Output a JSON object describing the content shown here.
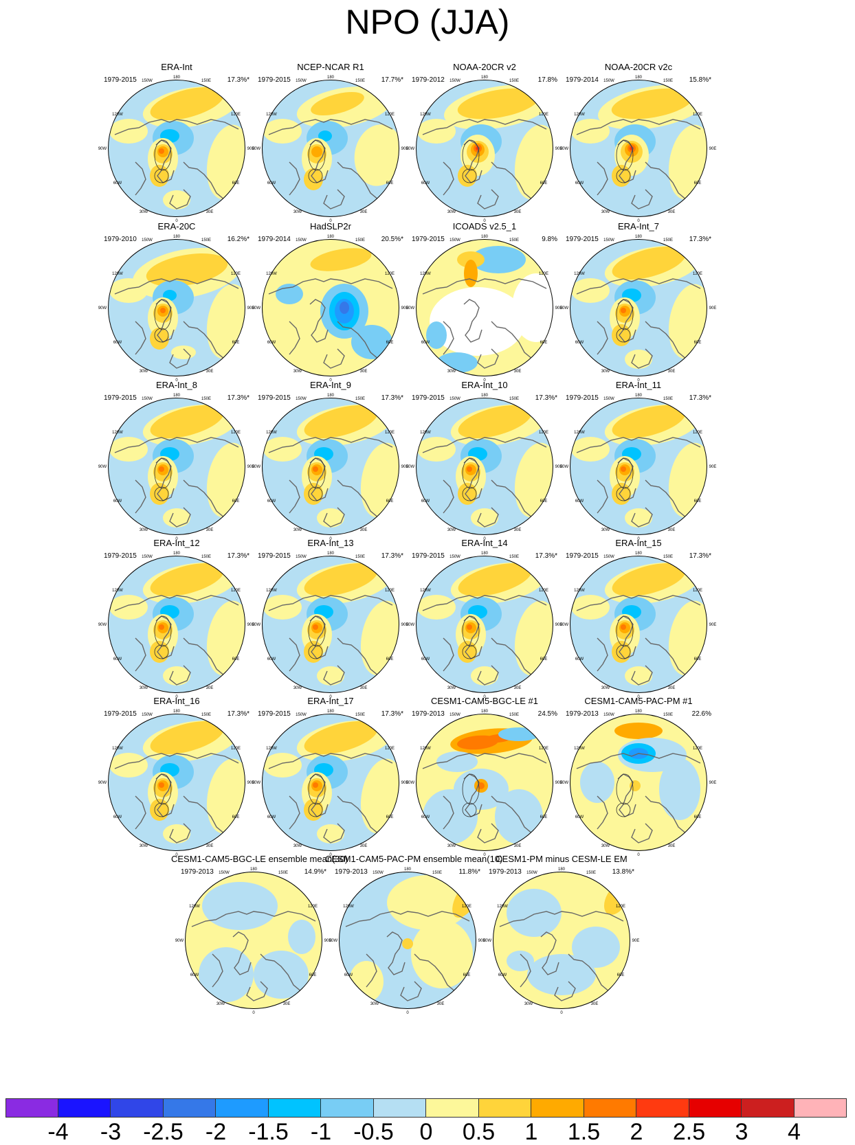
{
  "title": "NPO (JJA)",
  "axis_labels": {
    "top": "180",
    "tl": "150W",
    "tr": "150E",
    "l1": "120W",
    "r1": "120E",
    "w": "90W",
    "e": "90E",
    "l2": "60W",
    "r2": "60E",
    "bl": "30W",
    "br": "30E",
    "bottom": "0"
  },
  "panels": [
    {
      "title": "ERA-Int",
      "years": "1979-2015",
      "pct": "17.3%*",
      "style": "era"
    },
    {
      "title": "NCEP-NCAR R1",
      "years": "1979-2015",
      "pct": "17.7%*",
      "style": "ncep"
    },
    {
      "title": "NOAA-20CR v2",
      "years": "1979-2012",
      "pct": "17.8%",
      "style": "noaa"
    },
    {
      "title": "NOAA-20CR v2c",
      "years": "1979-2014",
      "pct": "15.8%*",
      "style": "noaa"
    },
    {
      "title": "ERA-20C",
      "years": "1979-2010",
      "pct": "16.2%*",
      "style": "era20c"
    },
    {
      "title": "HadSLP2r",
      "years": "1979-2014",
      "pct": "20.5%*",
      "style": "hadslp"
    },
    {
      "title": "ICOADS v2.5_1",
      "years": "1979-2015",
      "pct": "9.8%",
      "style": "icoads"
    },
    {
      "title": "ERA-Int_7",
      "years": "1979-2015",
      "pct": "17.3%*",
      "style": "era"
    },
    {
      "title": "ERA-Int_8",
      "years": "1979-2015",
      "pct": "17.3%*",
      "style": "era"
    },
    {
      "title": "ERA-Int_9",
      "years": "1979-2015",
      "pct": "17.3%*",
      "style": "era"
    },
    {
      "title": "ERA-Int_10",
      "years": "1979-2015",
      "pct": "17.3%*",
      "style": "era"
    },
    {
      "title": "ERA-Int_11",
      "years": "1979-2015",
      "pct": "17.3%*",
      "style": "era"
    },
    {
      "title": "ERA-Int_12",
      "years": "1979-2015",
      "pct": "17.3%*",
      "style": "era"
    },
    {
      "title": "ERA-Int_13",
      "years": "1979-2015",
      "pct": "17.3%*",
      "style": "era"
    },
    {
      "title": "ERA-Int_14",
      "years": "1979-2015",
      "pct": "17.3%*",
      "style": "era"
    },
    {
      "title": "ERA-Int_15",
      "years": "1979-2015",
      "pct": "17.3%*",
      "style": "era"
    },
    {
      "title": "ERA-Int_16",
      "years": "1979-2015",
      "pct": "17.3%*",
      "style": "era"
    },
    {
      "title": "ERA-Int_17",
      "years": "1979-2015",
      "pct": "17.3%*",
      "style": "era"
    },
    {
      "title": "CESM1-CAM5-BGC-LE #1",
      "years": "1979-2013",
      "pct": "24.5%",
      "style": "cesmle"
    },
    {
      "title": "CESM1-CAM5-PAC-PM #1",
      "years": "1979-2013",
      "pct": "22.6%",
      "style": "cesmpm"
    },
    {
      "title": "CESM1-CAM5-BGC-LE ensemble mean(30)",
      "years": "1979-2013",
      "pct": "14.9%*",
      "style": "emle"
    },
    {
      "title": "CESM1-CAM5-PAC-PM ensemble mean(10)",
      "years": "1979-2013",
      "pct": "11.8%*",
      "style": "empm"
    },
    {
      "title": "CESM1-PM minus CESM-LE EM",
      "years": "1979-2013",
      "pct": "13.8%*",
      "style": "emdiff"
    }
  ],
  "colorbar": {
    "colors": [
      "#8a2be2",
      "#1a14ff",
      "#3046e8",
      "#3578e8",
      "#1e9bff",
      "#00c3ff",
      "#78cdf5",
      "#b5dff3",
      "#fdf79a",
      "#ffd43a",
      "#ffaa00",
      "#ff7a00",
      "#ff3a10",
      "#e60000",
      "#cc1f1f",
      "#ffb3b8"
    ],
    "labels": [
      "-4",
      "-3",
      "-2.5",
      "-2",
      "-1.5",
      "-1",
      "-0.5",
      "0",
      "0.5",
      "1",
      "1.5",
      "2",
      "2.5",
      "3",
      "4"
    ]
  }
}
